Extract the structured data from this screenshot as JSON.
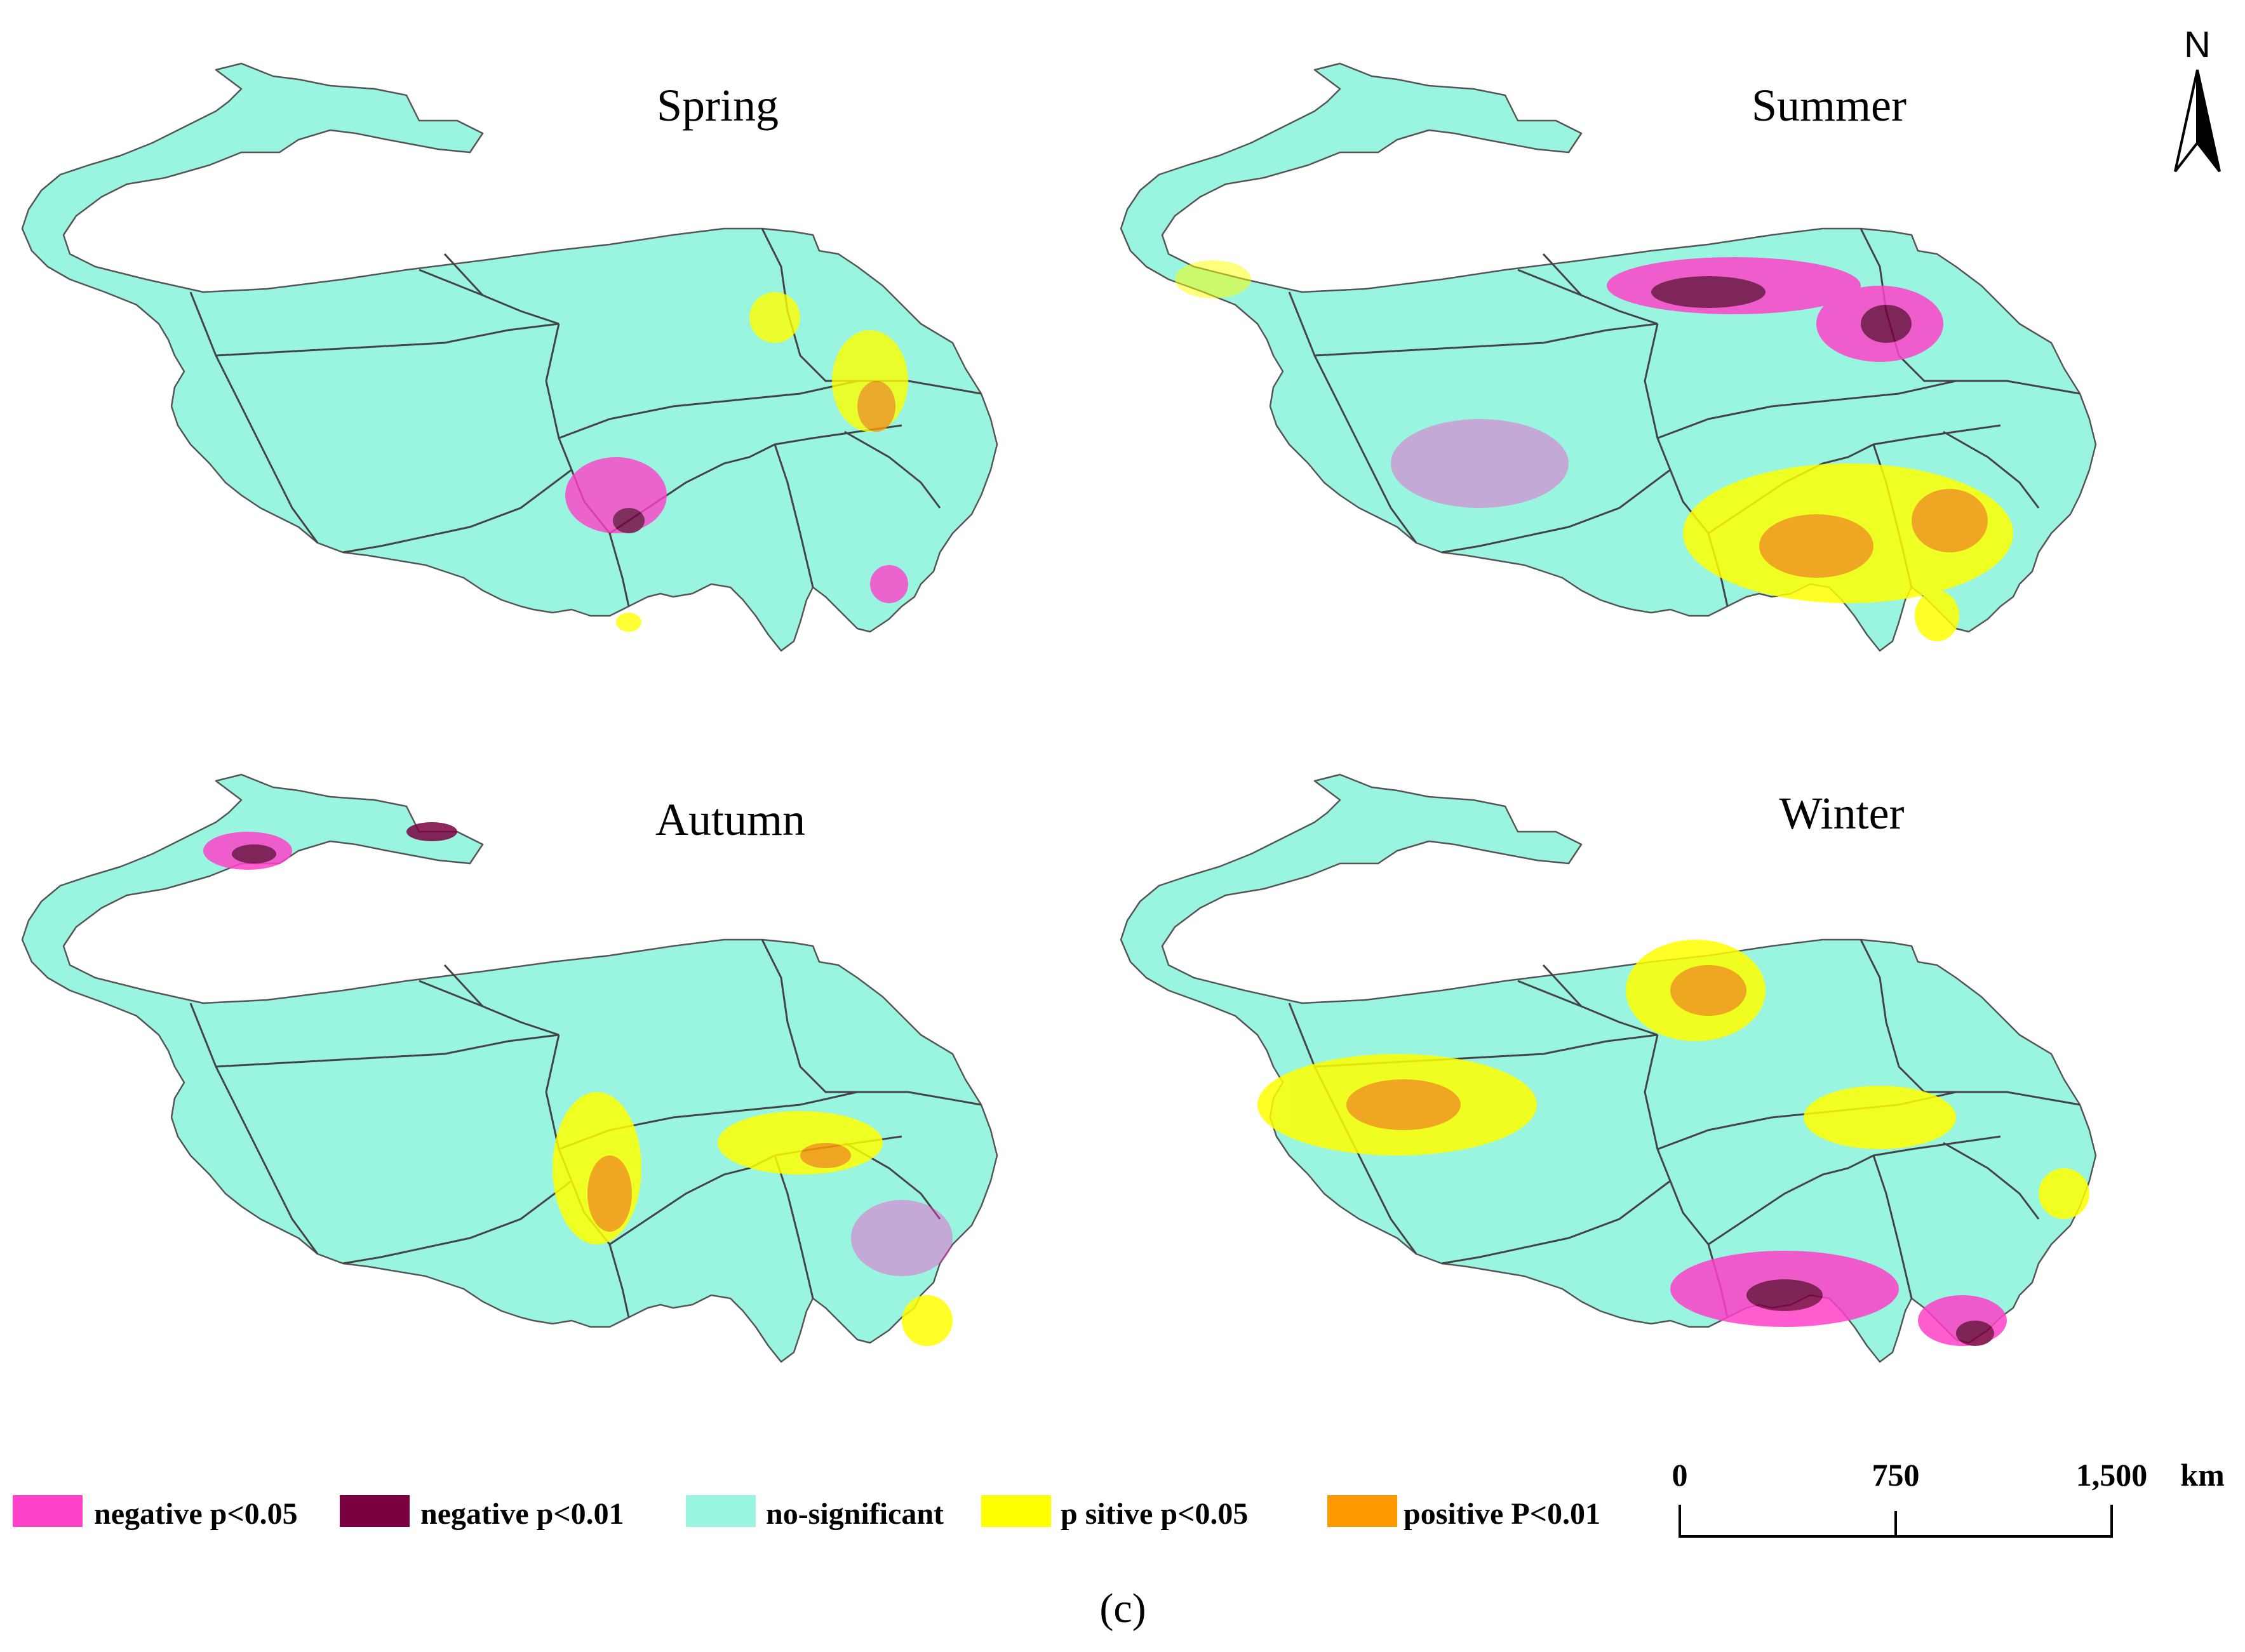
{
  "panels": [
    {
      "id": "spring",
      "title": "Spring"
    },
    {
      "id": "summer",
      "title": "Summer"
    },
    {
      "id": "autumn",
      "title": "Autumn"
    },
    {
      "id": "winter",
      "title": "Winter"
    }
  ],
  "legend": [
    {
      "label": "negative p<0.05",
      "color": "#ff40c8"
    },
    {
      "label": "negative p<0.01",
      "color": "#7a0040"
    },
    {
      "label": "no-significant",
      "color": "#99f5e0"
    },
    {
      "label": "p sitive p<0.05",
      "color": "#ffff00"
    },
    {
      "label": "positive P<0.01",
      "color": "#ff9900"
    }
  ],
  "scale_bar": {
    "ticks": [
      "0",
      "750",
      "1,500"
    ],
    "unit": "km"
  },
  "north_arrow": {
    "label": "N"
  },
  "caption": "(c)",
  "colors": {
    "region_fill": "#99f5e0",
    "boundary": "#444444"
  }
}
